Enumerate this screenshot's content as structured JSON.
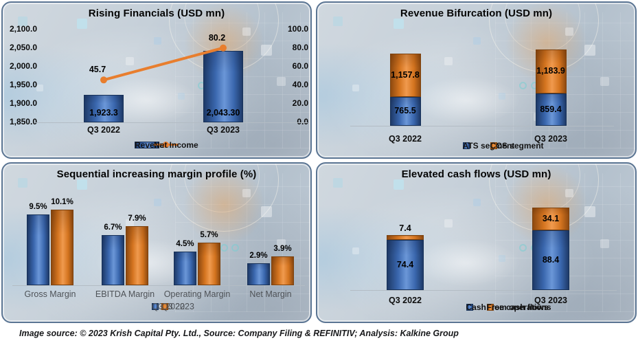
{
  "page": {
    "footer": "Image source: © 2023 Krish Capital Pty. Ltd., Source: Company Filing & REFINITIV; Analysis: Kalkine Group"
  },
  "colors": {
    "blue_dark": "#1e3a68",
    "blue_mid": "#3a67ae",
    "blue_light": "#6b97d8",
    "blue_edge": "#173158",
    "orange_dark": "#8f4a10",
    "orange_mid": "#d4741f",
    "orange_light": "#f09a4e",
    "orange_edge": "#7d420e",
    "line_orange": "#e87e2e",
    "panel_border": "#5b7593",
    "axis_line": "#b3bcc4",
    "text_dark": "#0a0a0a",
    "text_gray": "#4e5257"
  },
  "chart_data": [
    {
      "type": "bar",
      "subtype": "bar-line-combo",
      "title": "Rising Financials (USD mn)",
      "categories": [
        "Q3 2022",
        "Q3 2023"
      ],
      "series": [
        {
          "name": "Revenue",
          "kind": "bar",
          "color": "blue",
          "axis": "left",
          "values": [
            1923.3,
            2043.3
          ],
          "labels": [
            "1,923.3",
            "2,043.30"
          ]
        },
        {
          "name": "Net Income",
          "kind": "line",
          "color": "orange",
          "axis": "right",
          "values": [
            45.7,
            80.2
          ],
          "labels": [
            "45.7",
            "80.2"
          ]
        }
      ],
      "left_axis": {
        "min": 1850,
        "max": 2100,
        "ticks": [
          "2,100.0",
          "2,050.0",
          "2,000.0",
          "1,950.0",
          "1,900.0",
          "1,850.0"
        ]
      },
      "right_axis": {
        "min": 0,
        "max": 100,
        "ticks": [
          "100.0",
          "80.0",
          "60.0",
          "40.0",
          "20.0",
          "0.0"
        ]
      },
      "legend_position": "bottom",
      "grid": false
    },
    {
      "type": "bar",
      "subtype": "stacked",
      "title": "Revenue Bifurcation (USD mn)",
      "categories": [
        "Q3 2022",
        "Q3 2023"
      ],
      "series": [
        {
          "name": "ATS segment",
          "color": "blue",
          "values": [
            765.5,
            859.4
          ],
          "labels": [
            "765.5",
            "859.4"
          ]
        },
        {
          "name": "CCS segment",
          "color": "orange",
          "values": [
            1157.8,
            1183.9
          ],
          "labels": [
            "1,157.8",
            "1,183.9"
          ]
        }
      ],
      "legend_position": "bottom",
      "grid": false
    },
    {
      "type": "bar",
      "subtype": "grouped",
      "title": "Sequential increasing margin profile (%)",
      "categories": [
        "Gross Margin",
        "EBITDA Margin",
        "Operating Margin",
        "Net Margin"
      ],
      "series": [
        {
          "name": "Q3 2022",
          "color": "blue",
          "values": [
            9.5,
            6.7,
            4.5,
            2.9
          ],
          "labels": [
            "9.5%",
            "6.7%",
            "4.5%",
            "2.9%"
          ]
        },
        {
          "name": "Q3 2023",
          "color": "orange",
          "values": [
            10.1,
            7.9,
            5.7,
            3.9
          ],
          "labels": [
            "10.1%",
            "7.9%",
            "5.7%",
            "3.9%"
          ]
        }
      ],
      "legend_position": "bottom",
      "grid": false
    },
    {
      "type": "bar",
      "subtype": "stacked",
      "title": "Elevated cash flows (USD mn)",
      "categories": [
        "Q3 2022",
        "Q3 2023"
      ],
      "series": [
        {
          "name": "Cash from operations",
          "color": "blue",
          "values": [
            74.4,
            88.4
          ],
          "labels": [
            "74.4",
            "88.4"
          ]
        },
        {
          "name": "Free cash flows",
          "color": "orange",
          "values": [
            7.4,
            34.1
          ],
          "labels": [
            "7.4",
            "34.1"
          ]
        }
      ],
      "legend_position": "bottom",
      "grid": false
    }
  ]
}
